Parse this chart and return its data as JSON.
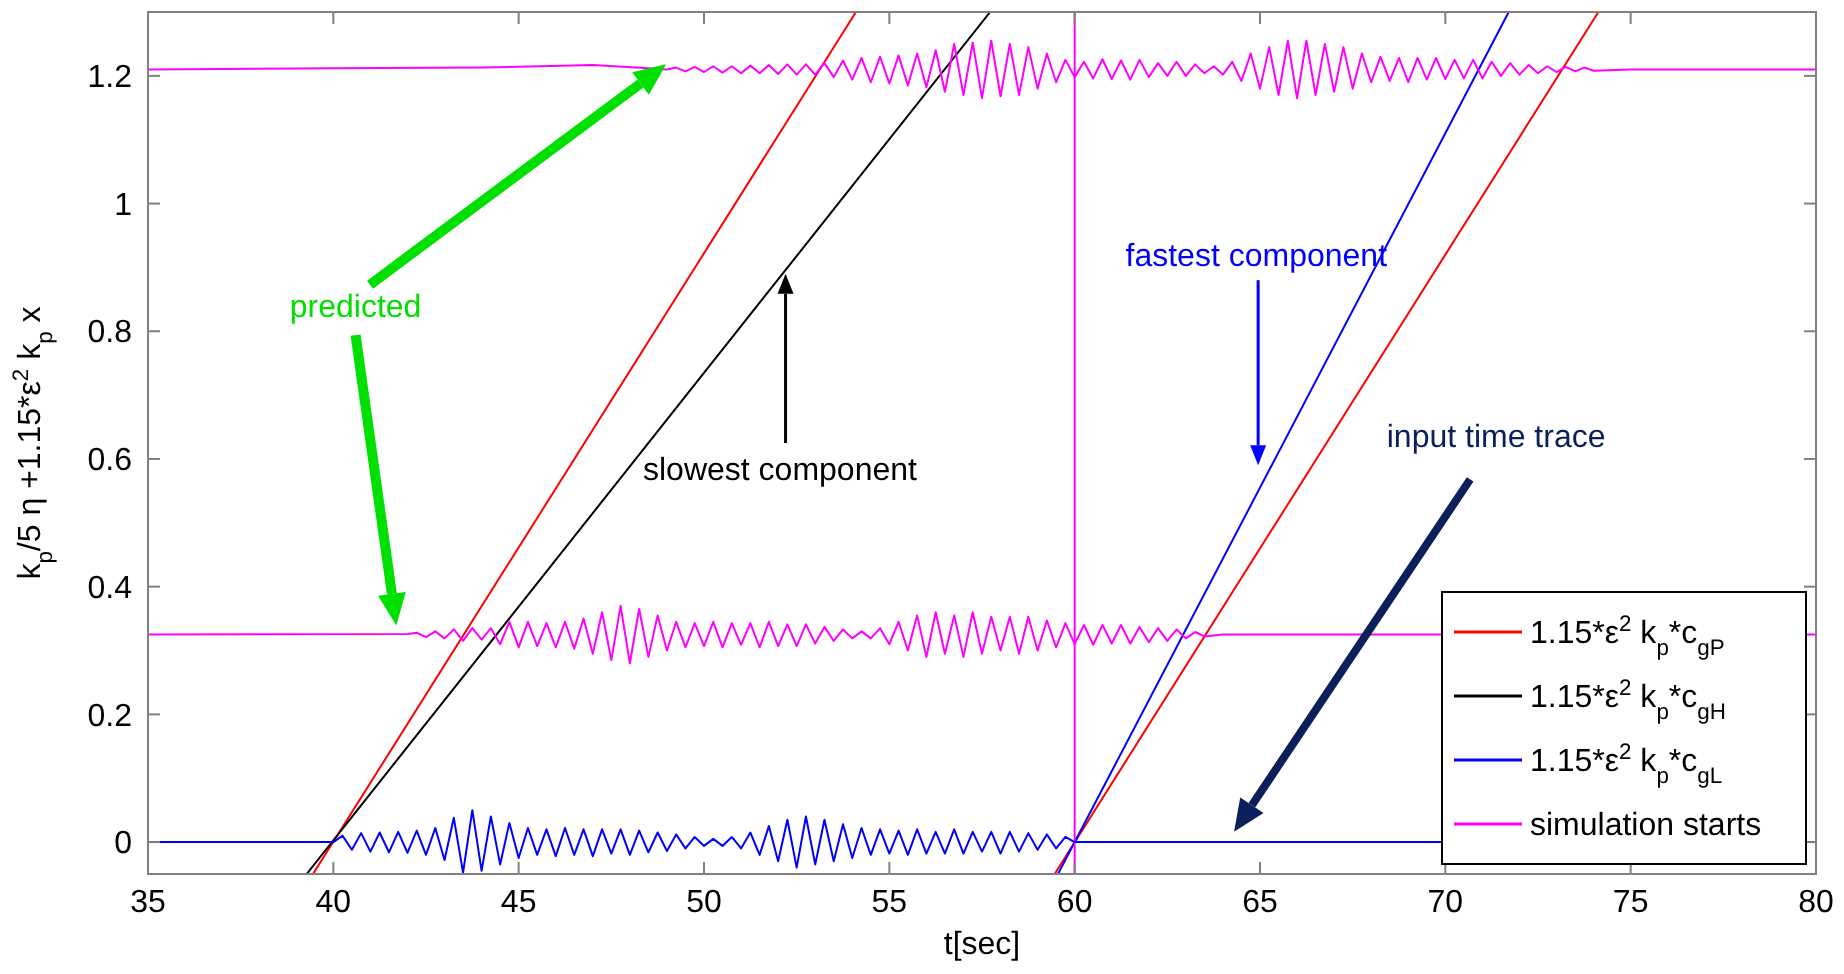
{
  "chart_data": {
    "type": "line",
    "xlabel": "t[sec]",
    "ylabel": "k$_{p}$/5 η +1.15*ε$^{2}$ k$_{p}$ x",
    "xlim": [
      35,
      80
    ],
    "xticks": [
      35,
      40,
      45,
      50,
      55,
      60,
      65,
      70,
      75,
      80
    ],
    "ylim": [
      -0.05,
      1.3
    ],
    "yticks": [
      0,
      0.2,
      0.4,
      0.6,
      0.8,
      1,
      1.2
    ],
    "grid": false,
    "legend": "bottom right",
    "annotations": [
      "predicted",
      "slowest component",
      "fastest component",
      "input time trace"
    ],
    "series": [
      {
        "name": "1.15*ε$^{2}$ k$_{p}$*c$_{gP}$",
        "color": "#ff0000",
        "x": [
          39.45,
          54.1
        ],
        "values": [
          -0.05,
          1.3
        ]
      },
      {
        "color": "#ff0000",
        "x": [
          59.46,
          74.13
        ],
        "values": [
          -0.05,
          1.3
        ]
      },
      {
        "name": "1.15*ε$^{2}$ k$_{p}$*c$_{gH}$",
        "color": "#000000",
        "x": [
          39.28,
          57.72
        ],
        "values": [
          -0.05,
          1.3
        ]
      },
      {
        "name": "1.15*ε$^{2}$ k$_{p}$*c$_{gL}$",
        "color": "#0000ff",
        "x": [
          59.55,
          71.71
        ],
        "values": [
          -0.05,
          1.3
        ]
      },
      {
        "name": "simulation starts",
        "color": "#ff00ff",
        "x": [
          60,
          60
        ],
        "values": [
          -0.05,
          1.3
        ]
      },
      {
        "color": "#ff00ff",
        "x": [
          35,
          40,
          44,
          47,
          48.5,
          49,
          49.25,
          49.5,
          49.75,
          50,
          50.25,
          50.5,
          50.75,
          51,
          51.25,
          51.5,
          51.75,
          52,
          52.25,
          52.5,
          52.75,
          53,
          53.25,
          53.5,
          53.75,
          54,
          54.25,
          54.5,
          54.75,
          55,
          55.25,
          55.5,
          55.75,
          56,
          56.25,
          56.5,
          56.75,
          57,
          57.25,
          57.5,
          57.75,
          58,
          58.25,
          58.5,
          58.75,
          59,
          59.25,
          59.5,
          59.75,
          60,
          60.25,
          60.5,
          60.75,
          61,
          61.25,
          61.5,
          61.75,
          62,
          62.25,
          62.5,
          62.75,
          63,
          63.25,
          63.5,
          63.75,
          64,
          64.25,
          64.5,
          64.75,
          65,
          65.25,
          65.5,
          65.75,
          66,
          66.25,
          66.5,
          66.75,
          67,
          67.25,
          67.5,
          67.75,
          68,
          68.25,
          68.5,
          68.75,
          69,
          69.25,
          69.5,
          69.75,
          70,
          70.25,
          70.5,
          70.75,
          71,
          71.25,
          71.5,
          71.75,
          72,
          72.25,
          72.5,
          72.75,
          73,
          73.25,
          73.5,
          73.75,
          74,
          75,
          80
        ],
        "values": [
          1.21,
          1.212,
          1.213,
          1.217,
          1.212,
          1.21,
          1.213,
          1.207,
          1.214,
          1.206,
          1.215,
          1.205,
          1.215,
          1.204,
          1.216,
          1.204,
          1.217,
          1.203,
          1.218,
          1.202,
          1.218,
          1.202,
          1.22,
          1.198,
          1.224,
          1.194,
          1.228,
          1.19,
          1.23,
          1.188,
          1.232,
          1.185,
          1.235,
          1.182,
          1.24,
          1.175,
          1.25,
          1.17,
          1.252,
          1.165,
          1.255,
          1.168,
          1.25,
          1.17,
          1.245,
          1.18,
          1.235,
          1.19,
          1.225,
          1.198,
          1.222,
          1.196,
          1.226,
          1.195,
          1.224,
          1.194,
          1.225,
          1.198,
          1.22,
          1.2,
          1.222,
          1.2,
          1.218,
          1.204,
          1.215,
          1.202,
          1.222,
          1.192,
          1.235,
          1.18,
          1.245,
          1.17,
          1.255,
          1.165,
          1.255,
          1.17,
          1.25,
          1.175,
          1.245,
          1.18,
          1.235,
          1.19,
          1.23,
          1.192,
          1.228,
          1.19,
          1.228,
          1.194,
          1.228,
          1.195,
          1.225,
          1.196,
          1.225,
          1.196,
          1.222,
          1.2,
          1.22,
          1.202,
          1.217,
          1.204,
          1.215,
          1.206,
          1.214,
          1.207,
          1.213,
          1.208,
          1.21,
          1.21
        ]
      },
      {
        "color": "#ff00ff",
        "x": [
          35,
          42,
          42.25,
          42.5,
          42.75,
          43,
          43.25,
          43.5,
          43.75,
          44,
          44.25,
          44.5,
          44.75,
          45,
          45.25,
          45.5,
          45.75,
          46,
          46.25,
          46.5,
          46.75,
          47,
          47.25,
          47.5,
          47.75,
          48,
          48.25,
          48.5,
          48.75,
          49,
          49.25,
          49.5,
          49.75,
          50,
          50.25,
          50.5,
          50.75,
          51,
          51.25,
          51.5,
          51.75,
          52,
          52.25,
          52.5,
          52.75,
          53,
          53.25,
          53.5,
          53.75,
          54,
          54.25,
          54.5,
          54.75,
          55,
          55.25,
          55.5,
          55.75,
          56,
          56.25,
          56.5,
          56.75,
          57,
          57.25,
          57.5,
          57.75,
          58,
          58.25,
          58.5,
          58.75,
          59,
          59.25,
          59.5,
          59.75,
          60,
          60.25,
          60.5,
          60.75,
          61,
          61.25,
          61.5,
          61.75,
          62,
          62.25,
          62.5,
          62.75,
          63,
          63.25,
          63.5,
          64,
          80
        ],
        "values": [
          0.325,
          0.326,
          0.328,
          0.321,
          0.33,
          0.319,
          0.333,
          0.315,
          0.335,
          0.317,
          0.335,
          0.31,
          0.345,
          0.305,
          0.345,
          0.307,
          0.343,
          0.305,
          0.345,
          0.303,
          0.35,
          0.295,
          0.36,
          0.285,
          0.37,
          0.28,
          0.365,
          0.29,
          0.355,
          0.3,
          0.345,
          0.305,
          0.343,
          0.307,
          0.345,
          0.305,
          0.343,
          0.309,
          0.343,
          0.305,
          0.345,
          0.307,
          0.341,
          0.307,
          0.341,
          0.311,
          0.337,
          0.315,
          0.333,
          0.319,
          0.33,
          0.319,
          0.335,
          0.31,
          0.345,
          0.3,
          0.355,
          0.29,
          0.36,
          0.295,
          0.355,
          0.29,
          0.36,
          0.295,
          0.353,
          0.3,
          0.353,
          0.295,
          0.353,
          0.3,
          0.347,
          0.305,
          0.343,
          0.31,
          0.34,
          0.309,
          0.34,
          0.311,
          0.34,
          0.311,
          0.337,
          0.313,
          0.335,
          0.315,
          0.333,
          0.319,
          0.329,
          0.322,
          0.325,
          0.325
        ]
      },
      {
        "color": "#0000ff",
        "x": [
          35,
          40,
          40.25,
          40.5,
          40.75,
          41,
          41.25,
          41.5,
          41.75,
          42,
          42.25,
          42.5,
          42.75,
          43,
          43.25,
          43.5,
          43.75,
          44,
          44.25,
          44.5,
          44.75,
          45,
          45.25,
          45.5,
          45.75,
          46,
          46.25,
          46.5,
          46.75,
          47,
          47.25,
          47.5,
          47.75,
          48,
          48.25,
          48.5,
          48.75,
          49,
          49.25,
          49.5,
          49.75,
          50,
          50.25,
          50.5,
          50.75,
          51,
          51.25,
          51.5,
          51.75,
          52,
          52.25,
          52.5,
          52.75,
          53,
          53.25,
          53.5,
          53.75,
          54,
          54.25,
          54.5,
          54.75,
          55,
          55.25,
          55.5,
          55.75,
          56,
          56.25,
          56.5,
          56.75,
          57,
          57.25,
          57.5,
          57.75,
          58,
          58.25,
          58.5,
          58.75,
          59,
          59.25,
          59.5,
          59.75,
          60,
          80
        ],
        "values": [
          0,
          0,
          0.01,
          -0.012,
          0.014,
          -0.015,
          0.015,
          -0.016,
          0.016,
          -0.017,
          0.018,
          -0.02,
          0.022,
          -0.028,
          0.038,
          -0.048,
          0.05,
          -0.045,
          0.04,
          -0.035,
          0.03,
          -0.025,
          0.022,
          -0.02,
          0.02,
          -0.022,
          0.022,
          -0.02,
          0.02,
          -0.022,
          0.02,
          -0.018,
          0.02,
          -0.02,
          0.018,
          -0.016,
          0.015,
          -0.014,
          0.012,
          -0.01,
          0.008,
          -0.006,
          0.005,
          -0.006,
          0.008,
          -0.01,
          0.015,
          -0.02,
          0.025,
          -0.03,
          0.035,
          -0.04,
          0.04,
          -0.035,
          0.035,
          -0.03,
          0.028,
          -0.025,
          0.022,
          -0.02,
          0.02,
          -0.018,
          0.018,
          -0.02,
          0.02,
          -0.018,
          0.016,
          -0.018,
          0.02,
          -0.018,
          0.016,
          -0.015,
          0.016,
          -0.018,
          0.016,
          -0.015,
          0.014,
          -0.012,
          0.012,
          -0.01,
          0.008,
          0,
          0
        ]
      }
    ]
  }
}
